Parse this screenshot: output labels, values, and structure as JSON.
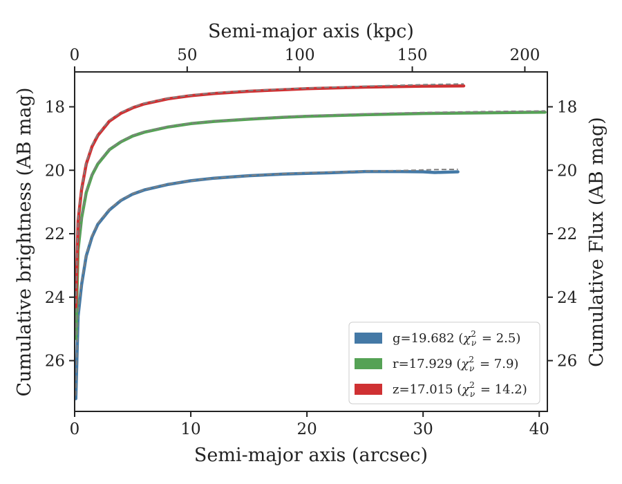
{
  "chart_data": {
    "type": "line",
    "xlabel": "Semi-major axis (arcsec)",
    "x2label": "Semi-major axis (kpc)",
    "ylabel": "Cumulative brightness (AB mag)",
    "y2label": "Cumulative Flux (AB mag)",
    "xlim": [
      0,
      40.7
    ],
    "x2lim": [
      0,
      210
    ],
    "ylim": [
      27.6,
      16.9
    ],
    "y_inverted": true,
    "xticks": [
      "0",
      "10",
      "20",
      "30",
      "40"
    ],
    "x2ticks": [
      "0",
      "50",
      "100",
      "150",
      "200"
    ],
    "yticks": [
      "18",
      "20",
      "22",
      "24",
      "26"
    ],
    "y2ticks": [
      "18",
      "20",
      "22",
      "24",
      "26"
    ],
    "legend_placement": "lower-right",
    "grid": false,
    "series": [
      {
        "name": "g=19.682",
        "chi": "2.5",
        "color": "#4479a6",
        "fit_color": "#7f7f7f",
        "x": [
          0.1,
          0.3,
          0.6,
          1.0,
          1.5,
          2.0,
          3.0,
          4.0,
          5.0,
          6.0,
          8.0,
          10.0,
          12.0,
          15.0,
          18.0,
          20.0,
          22.0,
          25.0,
          28.0,
          30.0,
          31.0,
          33.0
        ],
        "values": [
          27.2,
          24.6,
          23.6,
          22.7,
          22.1,
          21.7,
          21.25,
          20.95,
          20.75,
          20.62,
          20.45,
          20.33,
          20.25,
          20.17,
          20.12,
          20.1,
          20.08,
          20.04,
          20.04,
          20.05,
          20.07,
          20.05
        ],
        "fit": [
          27.1,
          24.5,
          23.5,
          22.65,
          22.05,
          21.67,
          21.22,
          20.93,
          20.74,
          20.61,
          20.44,
          20.33,
          20.25,
          20.17,
          20.11,
          20.08,
          20.06,
          20.03,
          20.01,
          19.99,
          19.98,
          19.97
        ]
      },
      {
        "name": "r=17.929",
        "chi": "7.9",
        "color": "#55a255",
        "fit_color": "#7f7f7f",
        "x": [
          0.1,
          0.3,
          0.6,
          1.0,
          1.5,
          2.0,
          3.0,
          4.0,
          5.0,
          6.0,
          8.0,
          10.0,
          12.0,
          15.0,
          18.0,
          20.0,
          25.0,
          30.0,
          35.0,
          40.5
        ],
        "values": [
          25.3,
          22.5,
          21.5,
          20.7,
          20.15,
          19.8,
          19.35,
          19.1,
          18.92,
          18.8,
          18.64,
          18.53,
          18.46,
          18.39,
          18.33,
          18.3,
          18.25,
          18.21,
          18.19,
          18.17
        ],
        "fit": [
          25.2,
          22.4,
          21.45,
          20.65,
          20.1,
          19.76,
          19.33,
          19.08,
          18.9,
          18.78,
          18.62,
          18.52,
          18.45,
          18.37,
          18.31,
          18.28,
          18.22,
          18.18,
          18.15,
          18.13
        ]
      },
      {
        "name": "z=17.015",
        "chi": "14.2",
        "color": "#cf3133",
        "fit_color": "#7f7f7f",
        "x": [
          0.1,
          0.3,
          0.6,
          1.0,
          1.5,
          2.0,
          3.0,
          4.0,
          5.0,
          6.0,
          8.0,
          10.0,
          12.0,
          15.0,
          18.0,
          20.0,
          25.0,
          30.0,
          33.5
        ],
        "values": [
          24.3,
          21.6,
          20.6,
          19.8,
          19.25,
          18.9,
          18.45,
          18.2,
          18.03,
          17.91,
          17.75,
          17.65,
          17.58,
          17.51,
          17.46,
          17.43,
          17.38,
          17.35,
          17.34
        ],
        "fit": [
          24.2,
          21.5,
          20.55,
          19.75,
          19.2,
          18.86,
          18.42,
          18.17,
          18.01,
          17.89,
          17.73,
          17.63,
          17.56,
          17.49,
          17.44,
          17.41,
          17.35,
          17.3,
          17.28
        ]
      }
    ]
  }
}
